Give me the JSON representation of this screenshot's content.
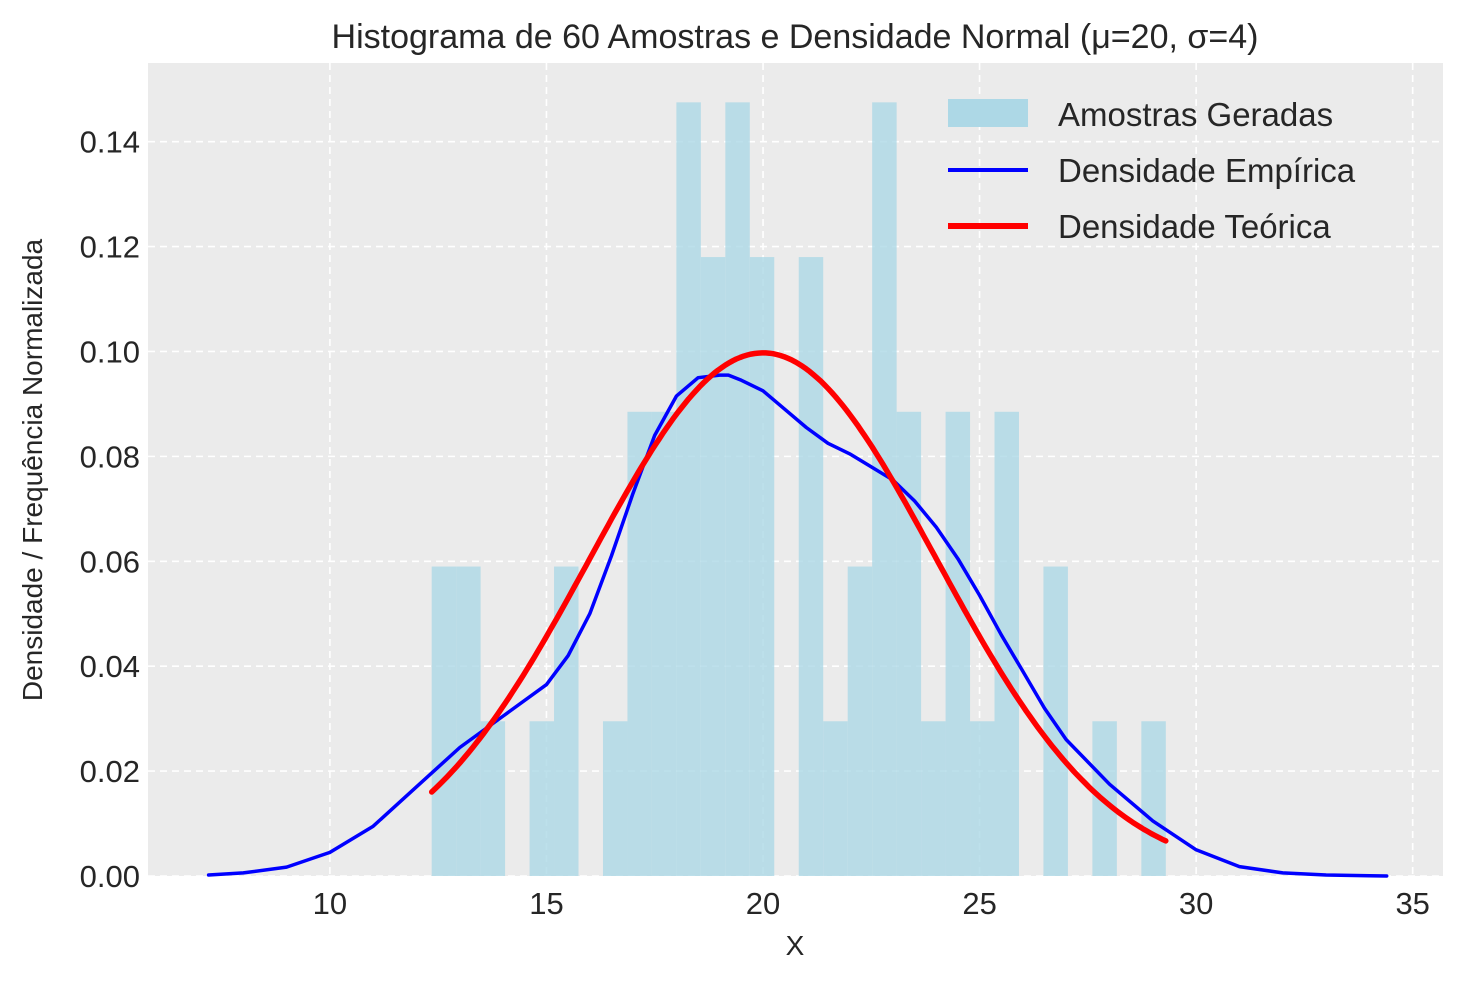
{
  "chart_data": {
    "type": "histogram",
    "title": "Histograma de 60 Amostras e Densidade Normal (μ=20, σ=4)",
    "xlabel": "X",
    "ylabel": "Densidade / Frequência Normalizada",
    "xlim": [
      5.8,
      35.7
    ],
    "ylim": [
      0,
      0.155
    ],
    "xticks": [
      10,
      15,
      20,
      25,
      30,
      35
    ],
    "yticks": [
      0.0,
      0.02,
      0.04,
      0.06,
      0.08,
      0.1,
      0.12,
      0.14
    ],
    "ytick_labels": [
      "0.00",
      "0.02",
      "0.04",
      "0.06",
      "0.08",
      "0.10",
      "0.12",
      "0.14"
    ],
    "grid": true,
    "legend_position": "top-right",
    "bin_edges": [
      12.35,
      12.915,
      13.48,
      14.045,
      14.61,
      15.175,
      15.74,
      16.305,
      16.87,
      17.435,
      18.0,
      18.565,
      19.13,
      19.695,
      20.26,
      20.825,
      21.39,
      21.955,
      22.52,
      23.085,
      23.65,
      24.215,
      24.78,
      25.345,
      25.91,
      26.475,
      27.04,
      27.605,
      28.17,
      28.735,
      29.3
    ],
    "histogram": {
      "name": "Amostras Geradas",
      "color": "#add8e6",
      "bins": [
        {
          "x0": 12.35,
          "x1": 12.915,
          "density": 0.059
        },
        {
          "x0": 12.915,
          "x1": 13.48,
          "density": 0.059
        },
        {
          "x0": 13.48,
          "x1": 14.045,
          "density": 0.0295
        },
        {
          "x0": 14.045,
          "x1": 14.61,
          "density": 0.0
        },
        {
          "x0": 14.61,
          "x1": 15.175,
          "density": 0.0295
        },
        {
          "x0": 15.175,
          "x1": 15.74,
          "density": 0.059
        },
        {
          "x0": 15.74,
          "x1": 16.305,
          "density": 0.0
        },
        {
          "x0": 16.305,
          "x1": 16.87,
          "density": 0.0295
        },
        {
          "x0": 16.87,
          "x1": 17.435,
          "density": 0.0885
        },
        {
          "x0": 17.435,
          "x1": 18.0,
          "density": 0.0885
        },
        {
          "x0": 18.0,
          "x1": 18.565,
          "density": 0.1475
        },
        {
          "x0": 18.565,
          "x1": 19.13,
          "density": 0.118
        },
        {
          "x0": 19.13,
          "x1": 19.695,
          "density": 0.1475
        },
        {
          "x0": 19.695,
          "x1": 20.26,
          "density": 0.118
        },
        {
          "x0": 20.26,
          "x1": 20.825,
          "density": 0.0
        },
        {
          "x0": 20.825,
          "x1": 21.39,
          "density": 0.118
        },
        {
          "x0": 21.39,
          "x1": 21.955,
          "density": 0.0295
        },
        {
          "x0": 21.955,
          "x1": 22.52,
          "density": 0.059
        },
        {
          "x0": 22.52,
          "x1": 23.085,
          "density": 0.1475
        },
        {
          "x0": 23.085,
          "x1": 23.65,
          "density": 0.0885
        },
        {
          "x0": 23.65,
          "x1": 24.215,
          "density": 0.0295
        },
        {
          "x0": 24.215,
          "x1": 24.78,
          "density": 0.0885
        },
        {
          "x0": 24.78,
          "x1": 25.345,
          "density": 0.0295
        },
        {
          "x0": 25.345,
          "x1": 25.91,
          "density": 0.0885
        },
        {
          "x0": 25.91,
          "x1": 26.475,
          "density": 0.0
        },
        {
          "x0": 26.475,
          "x1": 27.04,
          "density": 0.059
        },
        {
          "x0": 27.04,
          "x1": 27.605,
          "density": 0.0
        },
        {
          "x0": 27.605,
          "x1": 28.17,
          "density": 0.0295
        },
        {
          "x0": 28.17,
          "x1": 28.735,
          "density": 0.0
        },
        {
          "x0": 28.735,
          "x1": 29.3,
          "density": 0.0295
        }
      ]
    },
    "series": [
      {
        "name": "Densidade Empírica",
        "type": "line",
        "color": "#0000ff",
        "x": [
          7.2,
          8.0,
          9.0,
          10.0,
          11.0,
          12.0,
          13.0,
          14.0,
          15.0,
          15.5,
          16.0,
          16.5,
          17.0,
          17.5,
          18.0,
          18.5,
          19.0,
          19.2,
          19.5,
          20.0,
          20.5,
          21.0,
          21.5,
          22.0,
          22.5,
          23.0,
          23.5,
          24.0,
          24.5,
          25.0,
          25.5,
          26.0,
          26.5,
          27.0,
          28.0,
          29.0,
          30.0,
          31.0,
          32.0,
          33.0,
          34.0,
          34.4
        ],
        "y": [
          0.0002,
          0.0006,
          0.0017,
          0.0045,
          0.0095,
          0.017,
          0.0245,
          0.0305,
          0.0365,
          0.042,
          0.05,
          0.061,
          0.073,
          0.084,
          0.0915,
          0.095,
          0.0955,
          0.0955,
          0.0945,
          0.0925,
          0.089,
          0.0855,
          0.0825,
          0.0805,
          0.078,
          0.0755,
          0.0715,
          0.0665,
          0.0605,
          0.0535,
          0.046,
          0.039,
          0.032,
          0.026,
          0.0175,
          0.0105,
          0.005,
          0.0018,
          0.0006,
          0.0002,
          5e-05,
          0.0
        ],
        "linewidth": 3.5
      },
      {
        "name": "Densidade Teórica",
        "type": "line",
        "color": "#ff0000",
        "mu": 20,
        "sigma": 4,
        "x_range": [
          12.35,
          29.3
        ],
        "linewidth": 5.5
      }
    ]
  }
}
